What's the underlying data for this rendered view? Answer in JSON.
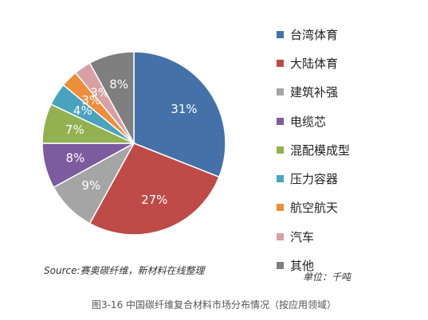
{
  "chart_data": {
    "type": "pie",
    "categories": [
      "台湾体育",
      "大陆体育",
      "建筑补强",
      "电缆芯",
      "混配模成型",
      "压力容器",
      "航空航天",
      "汽车",
      "其他"
    ],
    "values": [
      31,
      27,
      9,
      8,
      7,
      4,
      3,
      3,
      8
    ],
    "labels": [
      "31%",
      "27%",
      "9%",
      "8%",
      "7%",
      "4%",
      "3%",
      "3%",
      "8%"
    ],
    "colors": [
      "#4472A8",
      "#BE4B48",
      "#A5A5A5",
      "#7C5B9E",
      "#93B150",
      "#4AA3BE",
      "#ED8E3C",
      "#D9A0A3",
      "#7F7F7F"
    ],
    "legend_position": "right"
  },
  "source": "Source:赛奥碳纤维，新材料在线整理",
  "unit": "单位：千吨",
  "caption": "图3-16 中国碳纤维复合材料市场分布情况（按应用领域）"
}
